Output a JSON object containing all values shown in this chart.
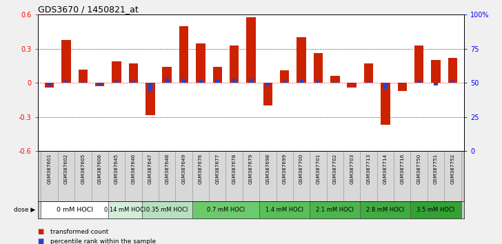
{
  "title": "GDS3670 / 1450821_at",
  "samples": [
    "GSM387601",
    "GSM387602",
    "GSM387605",
    "GSM387606",
    "GSM387645",
    "GSM387646",
    "GSM387647",
    "GSM387648",
    "GSM387649",
    "GSM387676",
    "GSM387677",
    "GSM387678",
    "GSM387679",
    "GSM387698",
    "GSM387699",
    "GSM387700",
    "GSM387701",
    "GSM387702",
    "GSM387703",
    "GSM387713",
    "GSM387714",
    "GSM387716",
    "GSM387750",
    "GSM387751",
    "GSM387752"
  ],
  "red_values": [
    -0.04,
    0.38,
    0.12,
    -0.03,
    0.19,
    0.17,
    -0.28,
    0.14,
    0.5,
    0.35,
    0.14,
    0.33,
    0.58,
    -0.2,
    0.11,
    0.4,
    0.26,
    0.06,
    -0.04,
    0.17,
    -0.37,
    -0.07,
    0.33,
    0.2,
    0.22
  ],
  "blue_values": [
    -0.03,
    0.02,
    0.01,
    -0.02,
    0.02,
    0.02,
    -0.07,
    0.04,
    0.04,
    0.03,
    0.03,
    0.04,
    0.04,
    -0.02,
    0.02,
    0.03,
    0.02,
    0.01,
    -0.01,
    0.01,
    -0.05,
    -0.01,
    0.02,
    -0.02,
    0.02
  ],
  "dose_groups": [
    {
      "label": "0 mM HOCl",
      "start": 0,
      "end": 4,
      "color": "#ffffff"
    },
    {
      "label": "0.14 mM HOCl",
      "start": 4,
      "end": 6,
      "color": "#d4edda"
    },
    {
      "label": "0.35 mM HOCl",
      "start": 6,
      "end": 9,
      "color": "#b8dfc0"
    },
    {
      "label": "0.7 mM HOCl",
      "start": 9,
      "end": 13,
      "color": "#6dc96d"
    },
    {
      "label": "1.4 mM HOCl",
      "start": 13,
      "end": 16,
      "color": "#5abf5a"
    },
    {
      "label": "2.1 mM HOCl",
      "start": 16,
      "end": 19,
      "color": "#4db54d"
    },
    {
      "label": "2.8 mM HOCl",
      "start": 19,
      "end": 22,
      "color": "#40ab40"
    },
    {
      "label": "3.5 mM HOCl",
      "start": 22,
      "end": 25,
      "color": "#33a133"
    }
  ],
  "ylim": [
    -0.6,
    0.6
  ],
  "y_left_ticks": [
    -0.6,
    -0.3,
    0.0,
    0.3,
    0.6
  ],
  "y_left_labels": [
    "-0.6",
    "-0.3",
    "0",
    "0.3",
    "0.6"
  ],
  "y_right_vals": [
    0,
    25,
    50,
    75,
    100
  ],
  "y_right_labels": [
    "0",
    "25",
    "50",
    "75",
    "100%"
  ],
  "red_color": "#cc2200",
  "blue_color": "#2244cc",
  "bg_color": "#f0f0f0",
  "plot_bg": "#ffffff",
  "bar_width": 0.55
}
